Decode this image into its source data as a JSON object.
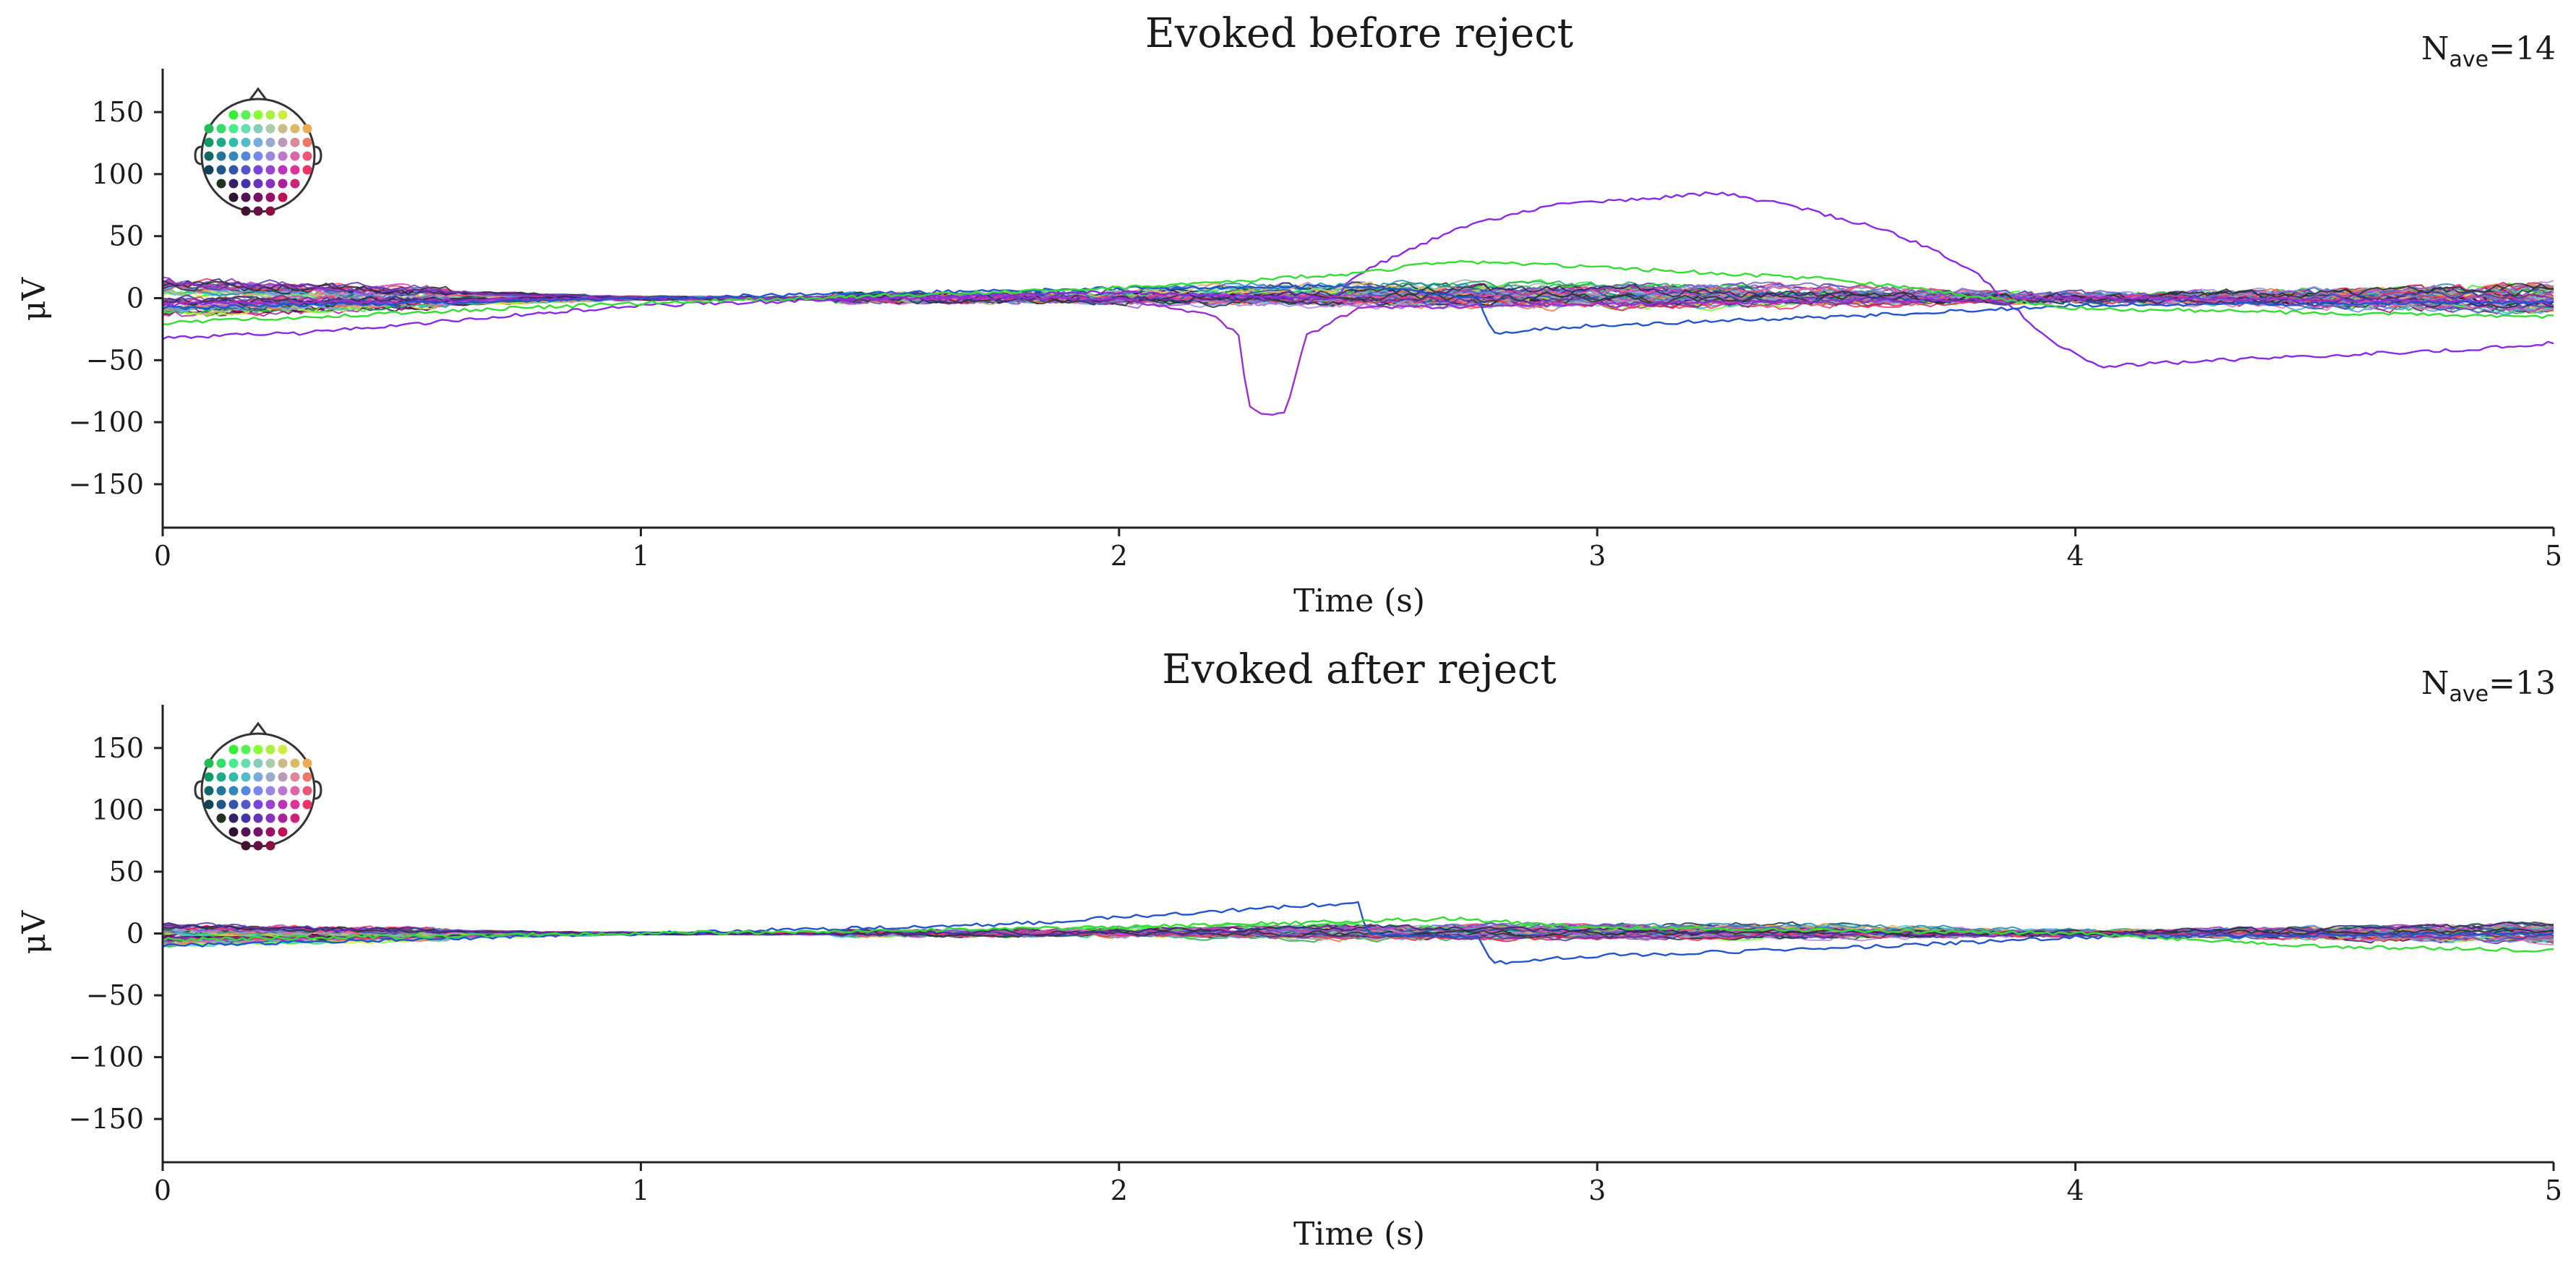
{
  "figure": {
    "ylabel": "μV",
    "xlabel": "Time (s)"
  },
  "chart_data": [
    {
      "type": "line",
      "title": "Evoked before reject",
      "nave_label": "N",
      "nave_sub": "ave",
      "nave_value": "=14",
      "xlabel": "Time (s)",
      "ylabel": "μV",
      "xlim": [
        0,
        5
      ],
      "ylim": [
        -185,
        185
      ],
      "xticks": [
        0,
        1,
        2,
        3,
        4,
        5
      ],
      "yticks": [
        -150,
        -100,
        -50,
        0,
        50,
        100,
        150
      ],
      "grid": false,
      "channel_count": 59,
      "notable_traces": [
        {
          "color": "#8a2be2",
          "points": [
            [
              0,
              -32
            ],
            [
              0.3,
              -28
            ],
            [
              0.7,
              -15
            ],
            [
              1.0,
              -6
            ],
            [
              1.5,
              0
            ],
            [
              2.0,
              5
            ],
            [
              2.2,
              2
            ],
            [
              2.45,
              0
            ],
            [
              2.5,
              20
            ],
            [
              2.7,
              55
            ],
            [
              2.9,
              75
            ],
            [
              3.1,
              80
            ],
            [
              3.25,
              85
            ],
            [
              3.4,
              75
            ],
            [
              3.6,
              55
            ],
            [
              3.7,
              40
            ],
            [
              3.8,
              18
            ],
            [
              3.85,
              0
            ],
            [
              3.95,
              -35
            ],
            [
              4.05,
              -55
            ],
            [
              4.3,
              -50
            ],
            [
              4.6,
              -45
            ],
            [
              4.8,
              -42
            ],
            [
              5.0,
              -36
            ]
          ]
        },
        {
          "color": "#9b30d0",
          "points": [
            [
              0,
              -5
            ],
            [
              1.0,
              0
            ],
            [
              2.0,
              0
            ],
            [
              2.2,
              -15
            ],
            [
              2.25,
              -30
            ],
            [
              2.27,
              -85
            ],
            [
              2.3,
              -95
            ],
            [
              2.35,
              -92
            ],
            [
              2.37,
              -60
            ],
            [
              2.39,
              -30
            ],
            [
              2.42,
              -25
            ],
            [
              2.5,
              -8
            ],
            [
              3.0,
              -5
            ],
            [
              4.0,
              0
            ],
            [
              5.0,
              -3
            ]
          ]
        },
        {
          "color": "#2255cc",
          "points": [
            [
              0,
              -8
            ],
            [
              1.0,
              0
            ],
            [
              2.0,
              8
            ],
            [
              2.5,
              10
            ],
            [
              2.75,
              0
            ],
            [
              2.78,
              -28
            ],
            [
              3.0,
              -22
            ],
            [
              3.5,
              -15
            ],
            [
              4.0,
              -6
            ],
            [
              5.0,
              -3
            ]
          ]
        },
        {
          "color": "#33dd33",
          "points": [
            [
              0,
              -20
            ],
            [
              1.0,
              -4
            ],
            [
              2.0,
              8
            ],
            [
              2.5,
              20
            ],
            [
              2.7,
              30
            ],
            [
              3.0,
              25
            ],
            [
              3.5,
              15
            ],
            [
              4.0,
              -8
            ],
            [
              4.5,
              -12
            ],
            [
              5.0,
              -15
            ]
          ]
        }
      ]
    },
    {
      "type": "line",
      "title": "Evoked after reject",
      "nave_label": "N",
      "nave_sub": "ave",
      "nave_value": "=13",
      "xlabel": "Time (s)",
      "ylabel": "μV",
      "xlim": [
        0,
        5
      ],
      "ylim": [
        -185,
        185
      ],
      "xticks": [
        0,
        1,
        2,
        3,
        4,
        5
      ],
      "yticks": [
        -150,
        -100,
        -50,
        0,
        50,
        100,
        150
      ],
      "grid": false,
      "channel_count": 59,
      "notable_traces": [
        {
          "color": "#2255cc",
          "points": [
            [
              0,
              -10
            ],
            [
              1.0,
              0
            ],
            [
              1.8,
              8
            ],
            [
              2.2,
              18
            ],
            [
              2.5,
              25
            ],
            [
              2.52,
              0
            ],
            [
              2.75,
              -3
            ],
            [
              2.78,
              -24
            ],
            [
              3.0,
              -18
            ],
            [
              3.5,
              -12
            ],
            [
              4.0,
              -3
            ],
            [
              5.0,
              0
            ]
          ]
        },
        {
          "color": "#33dd33",
          "points": [
            [
              0,
              -5
            ],
            [
              1.0,
              0
            ],
            [
              2.0,
              5
            ],
            [
              2.7,
              12
            ],
            [
              3.0,
              5
            ],
            [
              4.0,
              0
            ],
            [
              4.5,
              -10
            ],
            [
              5.0,
              -14
            ]
          ]
        }
      ]
    }
  ],
  "sensor_colors": [
    "#33ee33",
    "#77ff33",
    "#ccee44",
    "#22aa55",
    "#33cc99",
    "#55cccc",
    "#99bbaa",
    "#bbbb88",
    "#eeaa55",
    "#ee7744",
    "#115555",
    "#2288aa",
    "#5599dd",
    "#8899ee",
    "#aa88dd",
    "#dd77aa",
    "#ee5577",
    "#113344",
    "#3355aa",
    "#6666cc",
    "#9955dd",
    "#cc44bb",
    "#ee3366",
    "#223322",
    "#332266",
    "#5533aa",
    "#8833bb",
    "#aa2299",
    "#dd2255",
    "#441144",
    "#661166",
    "#992266",
    "#550044"
  ]
}
